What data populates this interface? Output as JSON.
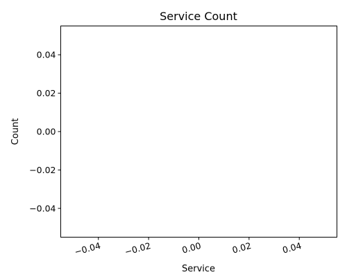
{
  "chart_data": {
    "type": "bar",
    "title": "Service Count",
    "xlabel": "Service",
    "ylabel": "Count",
    "categories": [],
    "values": [],
    "xlim": [
      -0.055,
      0.055
    ],
    "ylim": [
      -0.055,
      0.055
    ],
    "xticks": [
      -0.04,
      -0.02,
      0.0,
      0.02,
      0.04
    ],
    "xtick_labels": [
      "−0.04",
      "−0.02",
      "0.00",
      "0.02",
      "0.04"
    ],
    "yticks": [
      -0.04,
      -0.02,
      0.0,
      0.02,
      0.04
    ],
    "ytick_labels": [
      "−0.04",
      "−0.02",
      "0.00",
      "0.02",
      "0.04"
    ],
    "grid": false,
    "legend": "none"
  }
}
